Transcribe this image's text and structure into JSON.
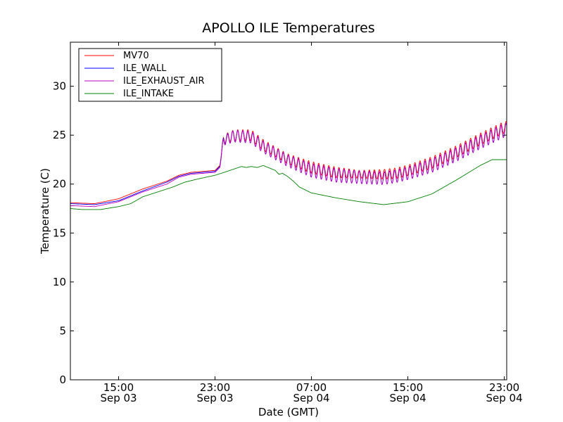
{
  "chart_data": {
    "type": "line",
    "title": "APOLLO ILE Temperatures",
    "xlabel": "Date (GMT)",
    "ylabel": "Temperature (C)",
    "xlim": [
      11.0,
      47.2
    ],
    "xlim_unit": "hours since 2012-09-03 00:00 GMT (approx.)",
    "ylim": [
      0,
      34.5
    ],
    "grid": false,
    "legend_position": "top-left",
    "x_ticks": [
      {
        "value": 15,
        "line1": "15:00",
        "line2": "Sep 03"
      },
      {
        "value": 23,
        "line1": "23:00",
        "line2": "Sep 03"
      },
      {
        "value": 31,
        "line1": "07:00",
        "line2": "Sep 04"
      },
      {
        "value": 39,
        "line1": "15:00",
        "line2": "Sep 04"
      },
      {
        "value": 47,
        "line1": "23:00",
        "line2": "Sep 04"
      }
    ],
    "y_ticks": [
      {
        "value": 0,
        "label": "0"
      },
      {
        "value": 5,
        "label": "5"
      },
      {
        "value": 10,
        "label": "10"
      },
      {
        "value": 15,
        "label": "15"
      },
      {
        "value": 20,
        "label": "20"
      },
      {
        "value": 25,
        "label": "25"
      },
      {
        "value": 30,
        "label": "30"
      }
    ],
    "series": [
      {
        "name": "MV70",
        "color": "#ff0000",
        "oscillating": true,
        "x": [
          11.0,
          13.0,
          15.0,
          17.0,
          19.0,
          20.0,
          21.0,
          23.0,
          23.4,
          23.7,
          24.6,
          26.0,
          27.0,
          28.0,
          29.0,
          31.0,
          33.0,
          35.0,
          37.0,
          38.0,
          39.0,
          41.0,
          43.0,
          45.0,
          47.0,
          47.2
        ],
        "y": [
          18.1,
          18.0,
          18.5,
          19.5,
          20.3,
          20.9,
          21.2,
          21.4,
          21.9,
          24.6,
          25.0,
          25.0,
          24.0,
          23.3,
          22.6,
          21.7,
          21.2,
          21.0,
          21.0,
          21.1,
          21.4,
          22.2,
          23.3,
          24.6,
          25.8,
          25.8
        ],
        "amp": [
          0,
          0,
          0,
          0,
          0,
          0,
          0,
          0,
          0,
          0.45,
          0.55,
          0.55,
          0.55,
          0.5,
          0.5,
          0.6,
          0.55,
          0.4,
          0.5,
          0.55,
          0.55,
          0.6,
          0.6,
          0.6,
          0.6,
          0.6
        ]
      },
      {
        "name": "ILE_WALL",
        "color": "#0000ff",
        "oscillating": true,
        "x": [
          11.0,
          13.0,
          15.0,
          17.0,
          19.0,
          20.0,
          21.0,
          23.0,
          23.4,
          23.7,
          24.6,
          26.0,
          27.0,
          28.0,
          29.0,
          31.0,
          33.0,
          35.0,
          37.0,
          38.0,
          39.0,
          41.0,
          43.0,
          45.0,
          47.0,
          47.2
        ],
        "y": [
          18.0,
          17.9,
          18.3,
          19.3,
          20.2,
          20.8,
          21.1,
          21.3,
          21.8,
          24.5,
          24.9,
          24.8,
          23.8,
          23.1,
          22.4,
          21.4,
          20.9,
          20.7,
          20.6,
          20.8,
          21.1,
          21.9,
          23.0,
          24.3,
          25.5,
          25.5
        ],
        "amp": [
          0,
          0,
          0,
          0,
          0,
          0,
          0,
          0,
          0,
          0.45,
          0.6,
          0.6,
          0.6,
          0.6,
          0.6,
          0.7,
          0.7,
          0.65,
          0.65,
          0.65,
          0.65,
          0.7,
          0.7,
          0.7,
          0.7,
          0.7
        ]
      },
      {
        "name": "ILE_EXHAUST_AIR",
        "color": "#bf00bf",
        "oscillating": true,
        "x": [
          11.0,
          13.0,
          15.0,
          17.0,
          19.0,
          20.0,
          21.0,
          23.0,
          23.4,
          23.7,
          24.6,
          26.0,
          27.0,
          28.0,
          29.0,
          31.0,
          33.0,
          35.0,
          37.0,
          38.0,
          39.0,
          41.0,
          43.0,
          45.0,
          47.0,
          47.2
        ],
        "y": [
          17.8,
          17.7,
          18.2,
          19.2,
          20.0,
          20.7,
          21.0,
          21.2,
          21.7,
          24.4,
          24.9,
          24.8,
          23.8,
          23.1,
          22.4,
          21.4,
          20.9,
          20.7,
          20.6,
          20.8,
          21.1,
          21.9,
          23.0,
          24.3,
          25.5,
          25.5
        ],
        "amp": [
          0,
          0,
          0,
          0,
          0,
          0,
          0,
          0,
          0,
          0.45,
          0.6,
          0.6,
          0.6,
          0.6,
          0.6,
          0.7,
          0.7,
          0.65,
          0.65,
          0.65,
          0.65,
          0.7,
          0.7,
          0.7,
          0.7,
          0.7
        ]
      },
      {
        "name": "ILE_INTAKE",
        "color": "#008000",
        "oscillating": false,
        "x": [
          11.0,
          12.0,
          13.5,
          15.0,
          16.0,
          17.0,
          18.5,
          19.5,
          20.5,
          21.5,
          23.0,
          24.0,
          25.2,
          25.6,
          26.0,
          26.5,
          27.0,
          28.0,
          28.3,
          28.6,
          29.0,
          29.5,
          30.0,
          31.0,
          33.0,
          35.0,
          37.0,
          39.0,
          41.0,
          43.0,
          45.0,
          46.0,
          47.2
        ],
        "y": [
          17.5,
          17.4,
          17.4,
          17.7,
          18.0,
          18.7,
          19.3,
          19.7,
          20.2,
          20.5,
          20.9,
          21.3,
          21.8,
          21.7,
          21.8,
          21.7,
          21.9,
          21.4,
          21.0,
          21.1,
          20.8,
          20.3,
          19.7,
          19.1,
          18.6,
          18.2,
          17.9,
          18.2,
          19.0,
          20.4,
          21.9,
          22.5,
          22.5
        ],
        "amp": [
          0,
          0,
          0,
          0,
          0,
          0,
          0,
          0,
          0,
          0,
          0,
          0,
          0,
          0,
          0,
          0,
          0,
          0,
          0,
          0,
          0,
          0,
          0,
          0,
          0,
          0,
          0,
          0,
          0,
          0,
          0,
          0,
          0
        ]
      }
    ],
    "oscillation_period_hours": 0.42
  }
}
